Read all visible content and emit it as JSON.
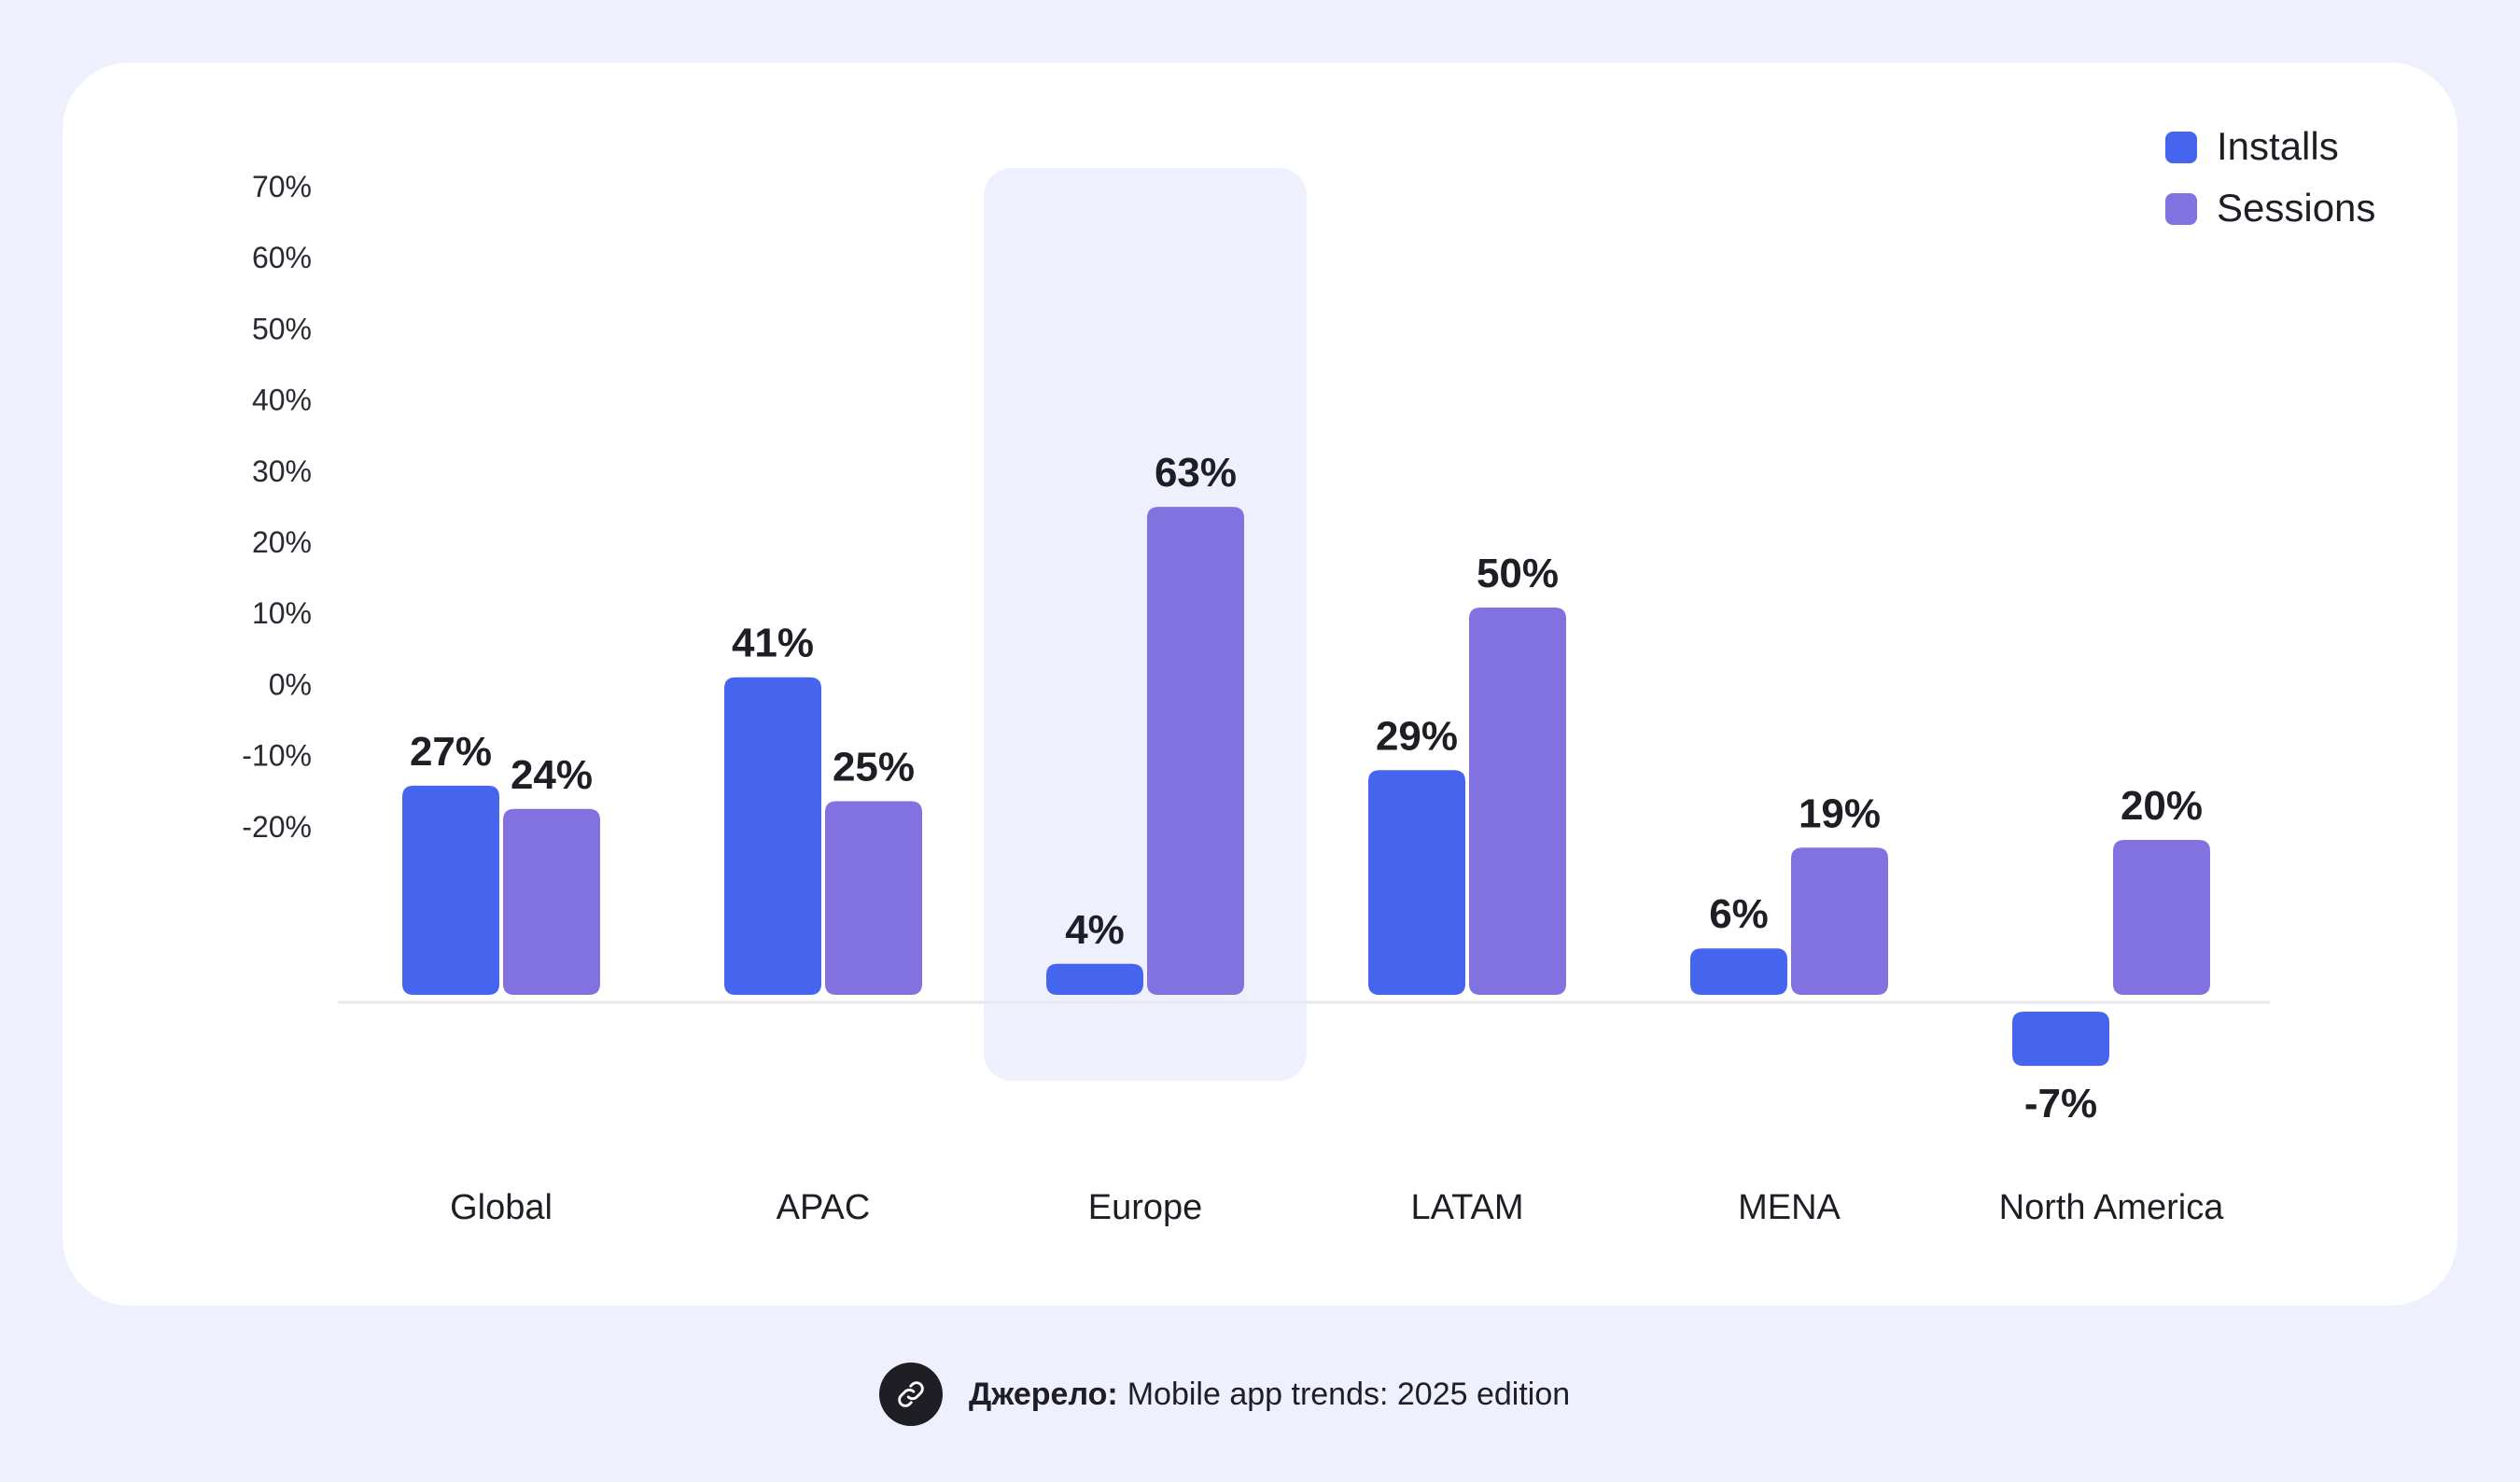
{
  "chart_data": {
    "type": "bar",
    "categories": [
      "Global",
      "APAC",
      "Europe",
      "LATAM",
      "MENA",
      "North America"
    ],
    "highlighted_category": "Europe",
    "series": [
      {
        "name": "Installs",
        "color": "#4665ee",
        "values": [
          27,
          41,
          4,
          29,
          6,
          -7
        ],
        "labels": [
          "27%",
          "41%",
          "4%",
          "29%",
          "6%",
          "-7%"
        ]
      },
      {
        "name": "Sessions",
        "color": "#8172e0",
        "values": [
          24,
          25,
          63,
          50,
          19,
          20
        ],
        "labels": [
          "24%",
          "25%",
          "63%",
          "50%",
          "19%",
          "20%"
        ]
      }
    ],
    "y_ticks": [
      "70%",
      "60%",
      "50%",
      "40%",
      "30%",
      "20%",
      "10%",
      "0%",
      "-10%",
      "-20%"
    ],
    "ylim": [
      -10,
      70
    ],
    "legend_position": "top-right",
    "grid": false
  },
  "source": {
    "label": "Джерело:",
    "text": "Mobile app trends: 2025 edition",
    "icon": "link-icon"
  }
}
